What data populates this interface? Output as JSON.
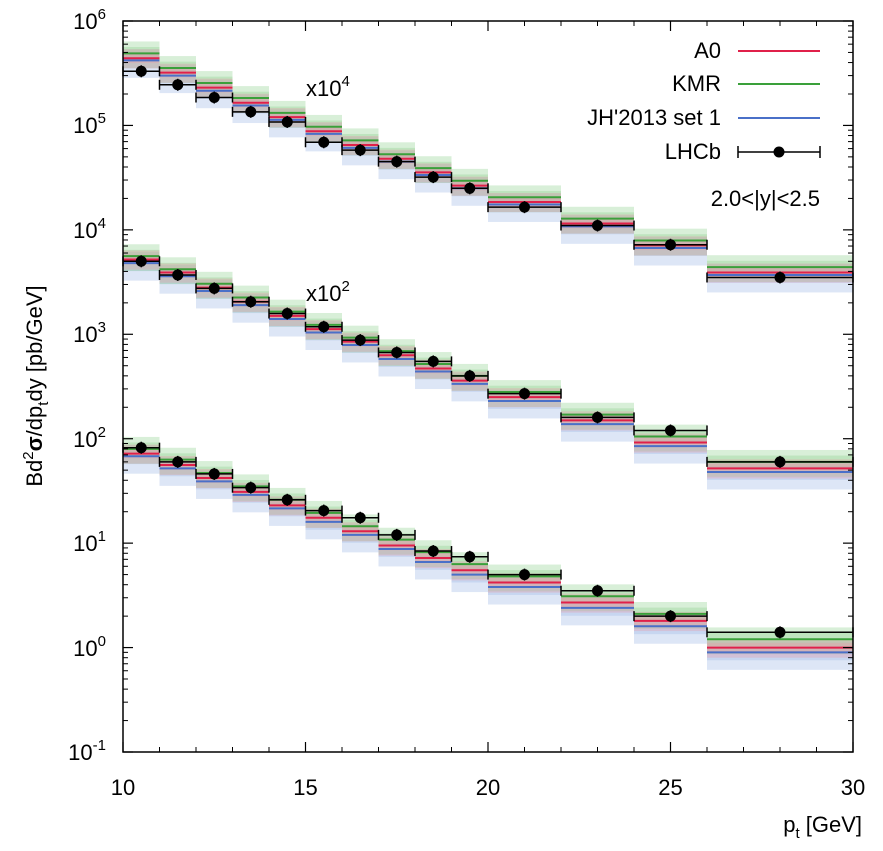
{
  "chart_data": {
    "type": "step-histogram",
    "xlabel_main": "p",
    "xlabel_sub": "t",
    "xlabel_unit": " [GeV]",
    "ylabel_parts": {
      "a": "Bd",
      "sup": "2",
      "sigma": "σ",
      "b": "/dp",
      "sub": "t",
      "c": "dy [pb/GeV]"
    },
    "xlim": [
      10,
      30
    ],
    "ylim_log10": [
      -1,
      6
    ],
    "y_scale": "log",
    "x_ticks": [
      {
        "value": 10,
        "label": "10"
      },
      {
        "value": 15,
        "label": "15"
      },
      {
        "value": 20,
        "label": "20"
      },
      {
        "value": 25,
        "label": "25"
      },
      {
        "value": 30,
        "label": "30"
      }
    ],
    "y_ticks": [
      {
        "exp": -1,
        "base": "10",
        "sup": "-1"
      },
      {
        "exp": 0,
        "base": "10",
        "sup": "0"
      },
      {
        "exp": 1,
        "base": "10",
        "sup": "1"
      },
      {
        "exp": 2,
        "base": "10",
        "sup": "2"
      },
      {
        "exp": 3,
        "base": "10",
        "sup": "3"
      },
      {
        "exp": 4,
        "base": "10",
        "sup": "4"
      },
      {
        "exp": 5,
        "base": "10",
        "sup": "5"
      },
      {
        "exp": 6,
        "base": "10",
        "sup": "6"
      }
    ],
    "bins": [
      [
        10,
        11
      ],
      [
        11,
        12
      ],
      [
        12,
        13
      ],
      [
        13,
        14
      ],
      [
        14,
        15
      ],
      [
        15,
        16
      ],
      [
        16,
        17
      ],
      [
        17,
        18
      ],
      [
        18,
        19
      ],
      [
        19,
        20
      ],
      [
        20,
        22
      ],
      [
        22,
        24
      ],
      [
        24,
        26
      ],
      [
        26,
        30
      ]
    ],
    "data_x": [
      10.5,
      11.5,
      12.5,
      13.5,
      14.5,
      15.5,
      16.5,
      17.5,
      18.5,
      19.5,
      21,
      23,
      25,
      28
    ],
    "series": [
      {
        "name": "A0",
        "color": "#e0204a",
        "band_color": "#e89aa8"
      },
      {
        "name": "KMR",
        "color": "#3aa03a",
        "band_color": "#8fd08f"
      },
      {
        "name": "JH'2013 set 1",
        "color": "#4a70c8",
        "band_color": "#9fb8e6"
      },
      {
        "name": "LHCb",
        "color": "#000000"
      }
    ],
    "groups": [
      {
        "multiplier": "",
        "annotation": null,
        "A0": [
          72,
          56,
          42,
          31,
          23,
          17.5,
          13,
          9.5,
          7.2,
          5.5,
          4.2,
          2.7,
          1.8,
          1.0
        ],
        "KMR": [
          80,
          63,
          47,
          35,
          26,
          19.5,
          14.5,
          10.8,
          8.2,
          6.3,
          4.8,
          3.1,
          2.1,
          1.2
        ],
        "JH": [
          68,
          52,
          39,
          29,
          21.5,
          16,
          12,
          8.8,
          6.6,
          5.0,
          3.8,
          2.4,
          1.6,
          0.9
        ],
        "LHCb": [
          82,
          60,
          46,
          34,
          26,
          20.5,
          17.5,
          12,
          8.4,
          7.4,
          5.0,
          3.5,
          2.0,
          1.4
        ]
      },
      {
        "multiplier": "x10^2",
        "annotation": {
          "base": "x10",
          "sup": "2",
          "x": 15,
          "y_exp": 3.45
        },
        "A0": [
          5200,
          3900,
          2800,
          2050,
          1500,
          1120,
          850,
          630,
          470,
          360,
          250,
          150,
          92,
          52
        ],
        "KMR": [
          5600,
          4200,
          3050,
          2250,
          1650,
          1230,
          930,
          690,
          520,
          400,
          280,
          170,
          105,
          60
        ],
        "JH": [
          4800,
          3600,
          2600,
          1900,
          1400,
          1040,
          790,
          580,
          440,
          335,
          230,
          138,
          85,
          48
        ],
        "LHCb": [
          5000,
          3700,
          2750,
          2050,
          1580,
          1180,
          880,
          670,
          550,
          400,
          270,
          160,
          120,
          60
        ]
      },
      {
        "multiplier": "x10^4",
        "annotation": {
          "base": "x10",
          "sup": "4",
          "x": 15,
          "y_exp": 5.35
        },
        "A0": [
          440000,
          320000,
          230000,
          165000,
          120000,
          88000,
          65000,
          48000,
          35500,
          26500,
          18500,
          11500,
          7100,
          3900
        ],
        "KMR": [
          490000,
          355000,
          255000,
          183000,
          132000,
          97000,
          72000,
          53000,
          39000,
          29500,
          20500,
          12800,
          7900,
          4400
        ],
        "JH": [
          420000,
          300000,
          215000,
          155000,
          113000,
          83000,
          61000,
          45000,
          33500,
          25000,
          17500,
          10800,
          6700,
          3700
        ],
        "LHCb": [
          330000,
          245000,
          185000,
          135000,
          108000,
          69000,
          58000,
          45000,
          32000,
          25000,
          16500,
          11000,
          7200,
          3500
        ]
      }
    ],
    "rapidity_label": "2.0<|y|<2.5"
  }
}
